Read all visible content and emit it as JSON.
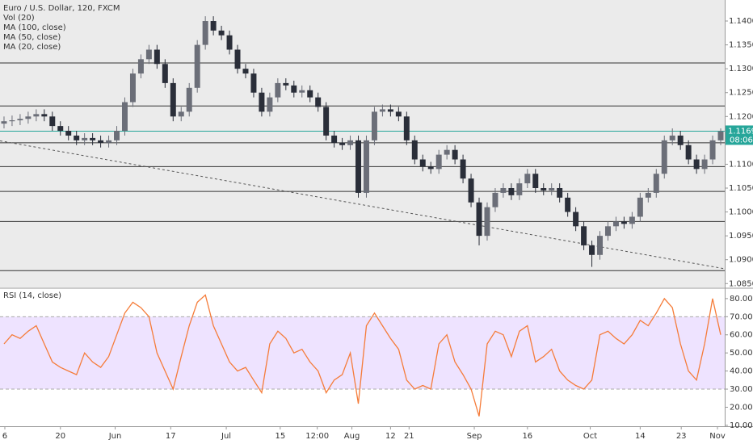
{
  "chart_data": [
    {
      "type": "candlestick",
      "title": "Euro / U.S. Dollar, 120, FXCM",
      "indicators": [
        "Vol (20)",
        "MA (100, close)",
        "MA (50, close)",
        "MA (20, close)"
      ],
      "open": [
        1.1185,
        1.119,
        1.1192,
        1.1195,
        1.12,
        1.1205,
        1.12,
        1.118,
        1.117,
        1.116,
        1.115,
        1.1155,
        1.115,
        1.1145,
        1.115,
        1.117,
        1.123,
        1.129,
        1.132,
        1.134,
        1.131,
        1.127,
        1.12,
        1.121,
        1.126,
        1.135,
        1.14,
        1.138,
        1.137,
        1.134,
        1.13,
        1.129,
        1.125,
        1.121,
        1.124,
        1.127,
        1.1265,
        1.125,
        1.1255,
        1.124,
        1.122,
        1.116,
        1.1145,
        1.114,
        1.115,
        1.104,
        1.115,
        1.121,
        1.1215,
        1.121,
        1.12,
        1.115,
        1.111,
        1.1095,
        1.109,
        1.112,
        1.113,
        1.111,
        1.107,
        1.102,
        1.095,
        1.101,
        1.104,
        1.105,
        1.1035,
        1.106,
        1.108,
        1.105,
        1.1045,
        1.105,
        1.103,
        1.1,
        1.097,
        1.093,
        1.091,
        1.095,
        1.097,
        1.098,
        1.0975,
        1.099,
        1.103,
        1.104,
        1.108,
        1.115,
        1.116,
        1.114,
        1.111,
        1.109,
        1.111,
        1.115
      ],
      "high": [
        1.12,
        1.1202,
        1.1205,
        1.121,
        1.1215,
        1.1215,
        1.121,
        1.119,
        1.118,
        1.117,
        1.1165,
        1.1165,
        1.116,
        1.116,
        1.118,
        1.124,
        1.13,
        1.133,
        1.135,
        1.135,
        1.132,
        1.128,
        1.122,
        1.127,
        1.136,
        1.141,
        1.141,
        1.139,
        1.138,
        1.135,
        1.131,
        1.13,
        1.126,
        1.125,
        1.128,
        1.128,
        1.1275,
        1.1265,
        1.1265,
        1.125,
        1.123,
        1.117,
        1.1155,
        1.116,
        1.116,
        1.116,
        1.122,
        1.1225,
        1.1225,
        1.122,
        1.121,
        1.116,
        1.112,
        1.1105,
        1.113,
        1.114,
        1.114,
        1.112,
        1.108,
        1.103,
        1.102,
        1.105,
        1.106,
        1.106,
        1.107,
        1.109,
        1.109,
        1.106,
        1.106,
        1.106,
        1.104,
        1.101,
        1.098,
        1.094,
        1.096,
        1.098,
        1.099,
        1.099,
        1.1,
        1.104,
        1.105,
        1.109,
        1.116,
        1.1175,
        1.117,
        1.115,
        1.112,
        1.112,
        1.116,
        1.1175
      ],
      "low": [
        1.1175,
        1.118,
        1.1182,
        1.1185,
        1.119,
        1.119,
        1.117,
        1.116,
        1.115,
        1.114,
        1.114,
        1.114,
        1.1135,
        1.1135,
        1.114,
        1.116,
        1.122,
        1.128,
        1.131,
        1.13,
        1.126,
        1.119,
        1.119,
        1.12,
        1.125,
        1.134,
        1.137,
        1.136,
        1.133,
        1.129,
        1.128,
        1.124,
        1.12,
        1.12,
        1.123,
        1.1255,
        1.124,
        1.124,
        1.123,
        1.121,
        1.115,
        1.1135,
        1.113,
        1.113,
        1.103,
        1.103,
        1.114,
        1.12,
        1.12,
        1.119,
        1.114,
        1.11,
        1.1085,
        1.108,
        1.108,
        1.111,
        1.11,
        1.106,
        1.101,
        1.093,
        1.094,
        1.1,
        1.103,
        1.1025,
        1.1025,
        1.105,
        1.104,
        1.1035,
        1.1035,
        1.102,
        1.099,
        1.096,
        1.092,
        1.0885,
        1.09,
        1.094,
        1.096,
        1.0965,
        1.0965,
        1.098,
        1.102,
        1.103,
        1.107,
        1.114,
        1.113,
        1.11,
        1.108,
        1.108,
        1.11,
        1.114
      ],
      "close": [
        1.119,
        1.1192,
        1.1195,
        1.12,
        1.1205,
        1.12,
        1.118,
        1.117,
        1.116,
        1.115,
        1.1155,
        1.115,
        1.1145,
        1.115,
        1.117,
        1.123,
        1.129,
        1.132,
        1.134,
        1.131,
        1.127,
        1.12,
        1.121,
        1.126,
        1.135,
        1.14,
        1.138,
        1.137,
        1.134,
        1.13,
        1.129,
        1.125,
        1.121,
        1.124,
        1.127,
        1.1265,
        1.125,
        1.1255,
        1.124,
        1.122,
        1.116,
        1.1145,
        1.114,
        1.115,
        1.104,
        1.115,
        1.121,
        1.1215,
        1.121,
        1.12,
        1.115,
        1.111,
        1.1095,
        1.109,
        1.112,
        1.113,
        1.111,
        1.107,
        1.102,
        1.095,
        1.101,
        1.104,
        1.105,
        1.1035,
        1.106,
        1.108,
        1.105,
        1.1045,
        1.105,
        1.103,
        1.1,
        1.097,
        1.093,
        1.091,
        1.095,
        1.097,
        1.098,
        1.0975,
        1.099,
        1.103,
        1.104,
        1.108,
        1.115,
        1.116,
        1.114,
        1.111,
        1.109,
        1.111,
        1.115,
        1.1169
      ],
      "xlim": [
        0,
        90
      ],
      "xticks": [
        {
          "value": 0.6,
          "label": "6"
        },
        {
          "value": 7.5,
          "label": "20"
        },
        {
          "value": 14.3,
          "label": "Jun"
        },
        {
          "value": 21.2,
          "label": "17"
        },
        {
          "value": 28.1,
          "label": "Jul"
        },
        {
          "value": 34.8,
          "label": "15"
        },
        {
          "value": 39.4,
          "label": "12:00"
        },
        {
          "value": 43.7,
          "label": "Aug"
        },
        {
          "value": 48.5,
          "label": "12"
        },
        {
          "value": 50.8,
          "label": "21"
        },
        {
          "value": 58.9,
          "label": "Sep"
        },
        {
          "value": 65.5,
          "label": "16"
        },
        {
          "value": 73.3,
          "label": "Oct"
        },
        {
          "value": 79.5,
          "label": "14"
        },
        {
          "value": 84.6,
          "label": "23"
        },
        {
          "value": 89.1,
          "label": "Nov"
        }
      ],
      "ylim": [
        1.0842,
        1.1444
      ],
      "yticks": [
        {
          "value": 1.085,
          "label": "1.08500"
        },
        {
          "value": 1.09,
          "label": "1.09000"
        },
        {
          "value": 1.095,
          "label": "1.09500"
        },
        {
          "value": 1.1,
          "label": "1.10000"
        },
        {
          "value": 1.105,
          "label": "1.10500"
        },
        {
          "value": 1.11,
          "label": "1.11000"
        },
        {
          "value": 1.12,
          "label": "1.12000"
        },
        {
          "value": 1.125,
          "label": "1.12500"
        },
        {
          "value": 1.13,
          "label": "1.13000"
        },
        {
          "value": 1.135,
          "label": "1.13500"
        },
        {
          "value": 1.14,
          "label": "1.14000"
        }
      ],
      "last_price": {
        "value": 1.11693,
        "label": "1.11693"
      },
      "countdown": "08:06",
      "levels": [
        1.1312,
        1.1222,
        1.1145,
        1.1095,
        1.1043,
        1.098,
        1.0877
      ],
      "trendline": {
        "x": [
          0,
          90
        ],
        "y": [
          1.1149,
          1.0881
        ]
      },
      "colors": {
        "up": "#6b6e78",
        "down": "#2a2e39",
        "level": "#333333",
        "last": "#26a69a",
        "trend": "#555555"
      }
    },
    {
      "type": "line",
      "title": "RSI (14, close)",
      "values": [
        55,
        60,
        58,
        62,
        65,
        55,
        45,
        42,
        40,
        38,
        50,
        45,
        42,
        48,
        60,
        72,
        78,
        75,
        70,
        50,
        40,
        30,
        48,
        65,
        78,
        82,
        65,
        55,
        45,
        40,
        42,
        35,
        28,
        55,
        62,
        58,
        50,
        52,
        45,
        40,
        28,
        35,
        38,
        50,
        22,
        65,
        72,
        65,
        58,
        52,
        35,
        30,
        32,
        30,
        55,
        60,
        45,
        38,
        30,
        15,
        55,
        62,
        60,
        48,
        62,
        65,
        45,
        48,
        52,
        40,
        35,
        32,
        30,
        35,
        60,
        62,
        58,
        55,
        60,
        68,
        65,
        72,
        80,
        75,
        55,
        40,
        35,
        55,
        80,
        60
      ],
      "color": "#f57c3a",
      "band": [
        30,
        70
      ],
      "band_color": "#eee3ff",
      "ylim": [
        9.5,
        85.3
      ],
      "yticks": [
        {
          "value": 10,
          "label": "10.00"
        },
        {
          "value": 20,
          "label": "20.00"
        },
        {
          "value": 30,
          "label": "30.00"
        },
        {
          "value": 40,
          "label": "40.00"
        },
        {
          "value": 50,
          "label": "50.00"
        },
        {
          "value": 60,
          "label": "60.00"
        },
        {
          "value": 70,
          "label": "70.00"
        },
        {
          "value": 80,
          "label": "80.00"
        }
      ]
    }
  ]
}
